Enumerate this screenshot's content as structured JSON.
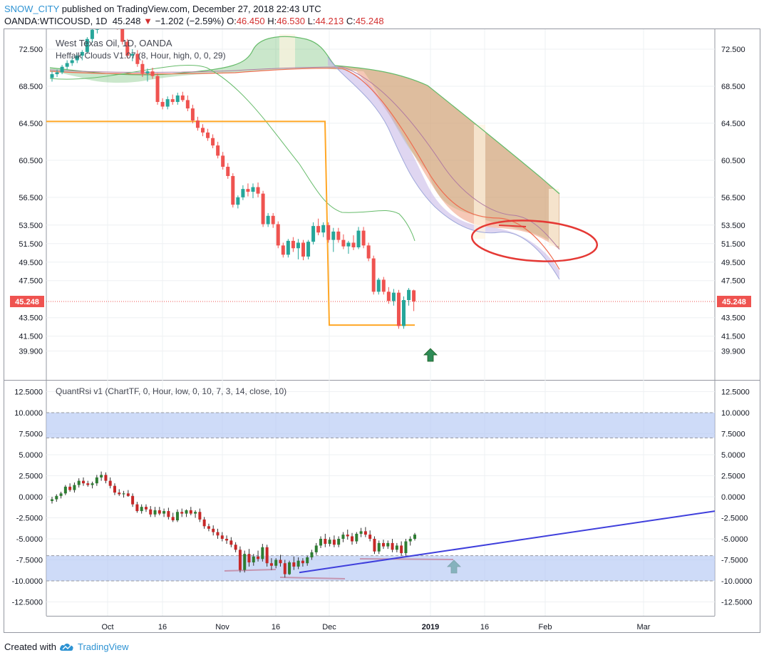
{
  "header": {
    "username": "SNOW_CITY",
    "published_text": "published on TradingView.com, December 27, 2018 22:43 UTC",
    "symbol": "OANDA:WTICOUSD, 1D",
    "last": "45.248",
    "change_arrow": "▼",
    "change": "−1.202 (−2.59%)",
    "open_label": "O:",
    "open": "46.450",
    "high_label": "H:",
    "high": "46.530",
    "low_label": "L:",
    "low": "44.213",
    "close_label": "C:",
    "close": "45.248"
  },
  "footer": {
    "created_with": "Created with",
    "brand": "TradingView",
    "logo_icon": "tradingview-cloud-icon"
  },
  "colors": {
    "up": "#26a69a",
    "down": "#ef5350",
    "osc_up": "#2e7d32",
    "osc_down": "#c62828",
    "cloud_green": "#66bb6a",
    "cloud_red": "#ef9a7a",
    "band": "#b3c8f5",
    "trendline": "#3f3fdc",
    "annotation_red": "#e53935",
    "price_tag": "#ef5350",
    "orange_line": "#ffa726"
  },
  "chart_data": [
    {
      "type": "candlestick",
      "title": "West Texas Oil, 1D, OANDA",
      "indicator": "Heffalk Clouds V1.07 (8, Hour, high, 0, 0, 29)",
      "price_ticks": [
        "72.500",
        "68.500",
        "64.500",
        "60.500",
        "56.500",
        "53.500",
        "51.500",
        "49.500",
        "47.500",
        "43.500",
        "41.500",
        "39.900"
      ],
      "last_price_label": "45.248",
      "last_price": 45.248,
      "x_ticks": [
        "Oct",
        "16",
        "Nov",
        "16",
        "Dec",
        "2019",
        "16",
        "Feb",
        "Mar"
      ],
      "candles": [
        [
          69.4,
          70.1,
          69.0,
          69.8
        ],
        [
          69.8,
          70.3,
          69.5,
          70.0
        ],
        [
          70.0,
          70.8,
          69.8,
          70.6
        ],
        [
          70.6,
          71.3,
          70.3,
          71.0
        ],
        [
          71.0,
          71.7,
          70.7,
          71.3
        ],
        [
          71.3,
          72.0,
          71.0,
          71.8
        ],
        [
          71.8,
          72.4,
          71.3,
          72.2
        ],
        [
          72.2,
          73.8,
          72.0,
          73.6
        ],
        [
          73.6,
          74.8,
          73.2,
          74.6
        ],
        [
          74.6,
          75.5,
          74.2,
          75.2
        ],
        [
          75.2,
          76.5,
          74.8,
          76.0
        ],
        [
          76.0,
          76.8,
          75.3,
          75.6
        ],
        [
          75.6,
          76.4,
          75.0,
          75.3
        ],
        [
          75.3,
          75.8,
          74.6,
          74.9
        ],
        [
          74.9,
          75.2,
          73.0,
          73.3
        ],
        [
          73.3,
          73.6,
          71.5,
          71.8
        ],
        [
          71.8,
          72.5,
          71.2,
          72.0
        ],
        [
          72.0,
          72.4,
          70.6,
          70.9
        ],
        [
          70.9,
          71.3,
          69.5,
          69.9
        ],
        [
          69.9,
          70.4,
          69.0,
          70.1
        ],
        [
          70.1,
          70.5,
          69.3,
          69.6
        ],
        [
          69.6,
          69.9,
          66.5,
          66.8
        ],
        [
          66.8,
          67.2,
          66.0,
          66.3
        ],
        [
          66.3,
          67.4,
          66.0,
          67.1
        ],
        [
          67.1,
          67.6,
          66.5,
          66.8
        ],
        [
          66.8,
          67.8,
          66.5,
          67.5
        ],
        [
          67.5,
          67.9,
          66.8,
          67.0
        ],
        [
          67.0,
          67.5,
          65.8,
          66.1
        ],
        [
          66.1,
          66.5,
          64.5,
          64.8
        ],
        [
          64.8,
          65.2,
          63.7,
          64.0
        ],
        [
          64.0,
          64.4,
          63.1,
          63.5
        ],
        [
          63.5,
          63.9,
          62.6,
          62.9
        ],
        [
          62.9,
          63.3,
          61.8,
          62.1
        ],
        [
          62.1,
          62.5,
          60.7,
          61.0
        ],
        [
          61.0,
          61.4,
          59.5,
          59.8
        ],
        [
          59.8,
          60.2,
          58.5,
          58.8
        ],
        [
          58.8,
          59.1,
          55.4,
          55.7
        ],
        [
          55.7,
          56.7,
          55.3,
          56.5
        ],
        [
          56.5,
          57.8,
          56.2,
          57.4
        ],
        [
          57.4,
          58.0,
          56.6,
          57.1
        ],
        [
          57.1,
          58.0,
          56.4,
          57.6
        ],
        [
          57.6,
          58.1,
          56.5,
          56.9
        ],
        [
          56.9,
          57.2,
          53.3,
          53.6
        ],
        [
          53.6,
          54.8,
          53.3,
          54.5
        ],
        [
          54.5,
          54.8,
          53.2,
          53.6
        ],
        [
          53.6,
          53.9,
          51.0,
          51.3
        ],
        [
          51.3,
          51.6,
          50.0,
          50.3
        ],
        [
          50.3,
          52.0,
          50.0,
          51.8
        ],
        [
          51.8,
          52.2,
          50.6,
          51.0
        ],
        [
          51.0,
          52.0,
          49.8,
          51.6
        ],
        [
          51.6,
          51.9,
          49.7,
          50.1
        ],
        [
          50.1,
          51.9,
          49.8,
          51.7
        ],
        [
          51.7,
          53.8,
          51.4,
          53.4
        ],
        [
          53.4,
          54.2,
          52.4,
          52.7
        ],
        [
          52.7,
          53.8,
          52.2,
          53.5
        ],
        [
          53.5,
          53.8,
          51.6,
          51.9
        ],
        [
          51.9,
          53.2,
          50.6,
          52.8
        ],
        [
          52.8,
          53.2,
          51.6,
          51.9
        ],
        [
          51.9,
          52.5,
          50.9,
          51.2
        ],
        [
          51.2,
          51.8,
          50.4,
          51.6
        ],
        [
          51.6,
          52.4,
          50.8,
          51.1
        ],
        [
          51.1,
          53.3,
          50.9,
          52.9
        ],
        [
          52.9,
          53.3,
          51.0,
          51.3
        ],
        [
          51.3,
          51.6,
          49.6,
          49.9
        ],
        [
          49.9,
          50.2,
          46.0,
          46.3
        ],
        [
          46.3,
          47.8,
          46.0,
          47.6
        ],
        [
          47.6,
          47.9,
          46.0,
          46.3
        ],
        [
          46.3,
          46.8,
          45.0,
          45.3
        ],
        [
          45.3,
          46.6,
          44.8,
          46.2
        ],
        [
          46.2,
          46.5,
          42.3,
          42.6
        ],
        [
          42.6,
          45.8,
          42.3,
          45.4
        ],
        [
          45.4,
          46.7,
          44.8,
          46.5
        ],
        [
          46.45,
          46.53,
          44.213,
          45.248
        ]
      ],
      "orange_levels": [
        64.7,
        42.7
      ]
    },
    {
      "type": "candlestick",
      "title": "QuantRsi v1 (ChartTF, 0, Hour, low, 0, 10, 7, 3, 14, close, 10)",
      "y_ticks": [
        "12.5000",
        "10.0000",
        "7.5000",
        "5.0000",
        "2.5000",
        "0.0000",
        "-2.5000",
        "-5.0000",
        "-7.5000",
        "-10.0000",
        "-12.5000"
      ],
      "bands": [
        [
          7.0,
          10.0
        ],
        [
          -10.0,
          -7.0
        ]
      ],
      "candles": [
        [
          -0.5,
          0.0,
          -0.8,
          -0.3
        ],
        [
          -0.3,
          0.3,
          -0.6,
          0.1
        ],
        [
          0.1,
          0.6,
          -0.2,
          0.4
        ],
        [
          0.4,
          1.4,
          0.2,
          1.2
        ],
        [
          1.2,
          1.6,
          0.6,
          0.8
        ],
        [
          0.8,
          1.7,
          0.5,
          1.4
        ],
        [
          1.4,
          2.2,
          1.1,
          1.9
        ],
        [
          1.9,
          2.3,
          1.3,
          1.6
        ],
        [
          1.6,
          1.9,
          1.2,
          1.4
        ],
        [
          1.4,
          1.8,
          1.0,
          1.6
        ],
        [
          1.6,
          2.6,
          1.3,
          2.3
        ],
        [
          2.3,
          3.0,
          1.9,
          2.6
        ],
        [
          2.6,
          2.9,
          1.6,
          1.9
        ],
        [
          1.9,
          2.3,
          1.0,
          1.3
        ],
        [
          1.3,
          1.6,
          0.2,
          0.5
        ],
        [
          0.5,
          0.9,
          0.1,
          0.3
        ],
        [
          0.3,
          0.7,
          -0.1,
          0.4
        ],
        [
          0.4,
          0.8,
          0.0,
          0.1
        ],
        [
          0.1,
          0.4,
          -1.2,
          -0.9
        ],
        [
          -0.9,
          -0.6,
          -1.9,
          -1.7
        ],
        [
          -1.7,
          -0.9,
          -2.0,
          -1.2
        ],
        [
          -1.2,
          -0.9,
          -1.8,
          -1.5
        ],
        [
          -1.5,
          -1.1,
          -2.4,
          -2.1
        ],
        [
          -2.1,
          -1.2,
          -2.4,
          -1.6
        ],
        [
          -1.6,
          -1.2,
          -2.2,
          -2.0
        ],
        [
          -2.0,
          -1.4,
          -2.4,
          -1.7
        ],
        [
          -1.7,
          -1.3,
          -2.7,
          -2.4
        ],
        [
          -2.4,
          -1.9,
          -3.0,
          -2.8
        ],
        [
          -2.8,
          -1.5,
          -3.0,
          -1.8
        ],
        [
          -1.8,
          -1.4,
          -2.4,
          -2.0
        ],
        [
          -2.0,
          -1.5,
          -2.4,
          -1.6
        ],
        [
          -1.6,
          -1.2,
          -2.2,
          -2.0
        ],
        [
          -2.0,
          -1.6,
          -2.5,
          -1.8
        ],
        [
          -1.8,
          -1.4,
          -3.0,
          -2.7
        ],
        [
          -2.7,
          -2.4,
          -3.8,
          -3.5
        ],
        [
          -3.5,
          -3.2,
          -4.1,
          -3.8
        ],
        [
          -3.8,
          -3.4,
          -4.6,
          -4.2
        ],
        [
          -4.2,
          -3.8,
          -5.0,
          -4.6
        ],
        [
          -4.6,
          -4.2,
          -5.3,
          -5.0
        ],
        [
          -5.0,
          -4.6,
          -5.6,
          -5.2
        ],
        [
          -5.2,
          -4.8,
          -6.0,
          -5.7
        ],
        [
          -5.7,
          -5.4,
          -6.6,
          -6.3
        ],
        [
          -6.3,
          -5.9,
          -9.0,
          -8.7
        ],
        [
          -8.7,
          -6.4,
          -9.0,
          -6.8
        ],
        [
          -6.8,
          -6.2,
          -8.3,
          -7.8
        ],
        [
          -7.8,
          -6.8,
          -8.2,
          -7.1
        ],
        [
          -7.1,
          -6.4,
          -7.7,
          -7.4
        ],
        [
          -7.4,
          -5.6,
          -7.7,
          -6.0
        ],
        [
          -6.0,
          -5.7,
          -8.3,
          -7.9
        ],
        [
          -7.9,
          -7.3,
          -8.7,
          -8.2
        ],
        [
          -8.2,
          -7.3,
          -8.5,
          -7.5
        ],
        [
          -7.5,
          -6.9,
          -8.3,
          -7.9
        ],
        [
          -7.9,
          -7.5,
          -9.6,
          -9.2
        ],
        [
          -9.2,
          -7.6,
          -9.3,
          -7.8
        ],
        [
          -7.8,
          -7.1,
          -8.7,
          -8.3
        ],
        [
          -8.3,
          -7.2,
          -8.6,
          -7.6
        ],
        [
          -7.6,
          -7.3,
          -8.3,
          -7.9
        ],
        [
          -7.9,
          -7.0,
          -8.2,
          -7.2
        ],
        [
          -7.2,
          -6.3,
          -7.5,
          -6.6
        ],
        [
          -6.6,
          -5.5,
          -6.9,
          -5.8
        ],
        [
          -5.8,
          -4.7,
          -6.1,
          -5.0
        ],
        [
          -5.0,
          -4.4,
          -6.0,
          -5.6
        ],
        [
          -5.6,
          -4.8,
          -5.9,
          -5.1
        ],
        [
          -5.1,
          -4.6,
          -6.0,
          -5.7
        ],
        [
          -5.7,
          -4.7,
          -6.0,
          -5.0
        ],
        [
          -5.0,
          -4.2,
          -5.4,
          -4.5
        ],
        [
          -4.5,
          -3.9,
          -5.1,
          -4.7
        ],
        [
          -4.7,
          -4.3,
          -5.7,
          -5.3
        ],
        [
          -5.3,
          -4.2,
          -5.6,
          -4.4
        ],
        [
          -4.4,
          -3.7,
          -4.8,
          -4.1
        ],
        [
          -4.1,
          -3.6,
          -4.8,
          -4.5
        ],
        [
          -4.5,
          -4.0,
          -5.3,
          -5.0
        ],
        [
          -5.0,
          -4.7,
          -6.8,
          -6.5
        ],
        [
          -6.5,
          -5.2,
          -6.8,
          -5.5
        ],
        [
          -5.5,
          -5.1,
          -6.2,
          -5.9
        ],
        [
          -5.9,
          -5.2,
          -6.2,
          -5.5
        ],
        [
          -5.5,
          -5.0,
          -6.6,
          -6.3
        ],
        [
          -6.3,
          -5.5,
          -6.6,
          -5.8
        ],
        [
          -5.8,
          -5.3,
          -7.0,
          -6.7
        ],
        [
          -6.7,
          -5.0,
          -7.0,
          -5.3
        ],
        [
          -5.3,
          -4.7,
          -5.8,
          -5.0
        ],
        [
          -5.0,
          -4.3,
          -5.2,
          -4.5
        ]
      ],
      "trendline": [
        [
          -9.0,
          -1.7
        ]
      ],
      "x_ticks": [
        "Oct",
        "16",
        "Nov",
        "16",
        "Dec",
        "2019",
        "16",
        "Feb",
        "Mar"
      ]
    }
  ]
}
